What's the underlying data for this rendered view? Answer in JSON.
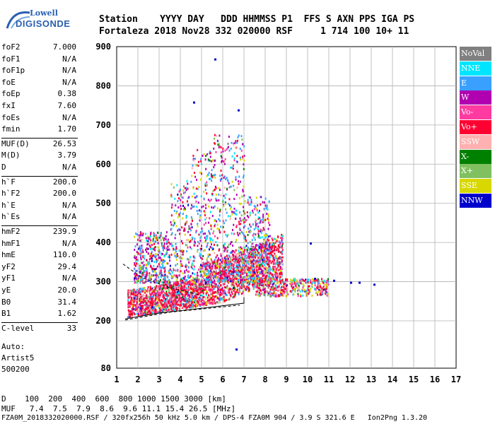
{
  "logo": {
    "top": "Lowell",
    "bottom": "DIGISONDE"
  },
  "header": {
    "row1": "Station    YYYY DAY   DDD HHMMSS P1  FFS S AXN PPS IGA PS",
    "row2": "Fortaleza 2018 Nov28 332 020000 RSF     1 714 100 10+ 11"
  },
  "params": [
    {
      "label": "foF2",
      "value": "7.000"
    },
    {
      "label": "foF1",
      "value": "N/A"
    },
    {
      "label": "foF1p",
      "value": "N/A"
    },
    {
      "label": "foE",
      "value": "N/A"
    },
    {
      "label": "foEp",
      "value": "0.38"
    },
    {
      "label": "fxI",
      "value": "7.60"
    },
    {
      "label": "foEs",
      "value": "N/A"
    },
    {
      "label": "fmin",
      "value": "1.70"
    },
    {
      "label": "MUF(D)",
      "value": "26.53"
    },
    {
      "label": "M(D)",
      "value": "3.79"
    },
    {
      "label": "D",
      "value": "N/A"
    },
    {
      "label": "h`F",
      "value": "200.0"
    },
    {
      "label": "h`F2",
      "value": "200.0"
    },
    {
      "label": "h`E",
      "value": "N/A"
    },
    {
      "label": "h`Es",
      "value": "N/A"
    },
    {
      "label": "hmF2",
      "value": "239.9"
    },
    {
      "label": "hmF1",
      "value": "N/A"
    },
    {
      "label": "hmE",
      "value": "110.0"
    },
    {
      "label": "yF2",
      "value": "29.4"
    },
    {
      "label": "yF1",
      "value": "N/A"
    },
    {
      "label": "yE",
      "value": "20.0"
    },
    {
      "label": "B0",
      "value": "31.4"
    },
    {
      "label": "B1",
      "value": "1.62"
    },
    {
      "label": "C-level",
      "value": "33"
    }
  ],
  "auto": {
    "line1": "Auto:",
    "line2": "Artist5",
    "line3": "500200"
  },
  "legend": [
    {
      "label": "NoVal",
      "color": "#808080"
    },
    {
      "label": "NNE",
      "color": "#00e5ff"
    },
    {
      "label": "E",
      "color": "#3aa0ff"
    },
    {
      "label": "W",
      "color": "#b000b0"
    },
    {
      "label": "Vo-",
      "color": "#ff3aa0"
    },
    {
      "label": "Vo+",
      "color": "#ff0033"
    },
    {
      "label": "SSW",
      "color": "#ffb0b0"
    },
    {
      "label": "X-",
      "color": "#008000"
    },
    {
      "label": "X+",
      "color": "#80c060"
    },
    {
      "label": "SSE",
      "color": "#d8d800"
    },
    {
      "label": "NNW",
      "color": "#0000cc"
    }
  ],
  "chart_data": {
    "type": "scatter",
    "title": "",
    "xlabel": "",
    "ylabel": "",
    "x_ticks": [
      "1",
      "2",
      "3",
      "4",
      "5",
      "6",
      "7",
      "8",
      "9",
      "10",
      "11",
      "12",
      "13",
      "14",
      "15",
      "16",
      "17"
    ],
    "y_ticks": [
      "80",
      "200",
      "300",
      "400",
      "500",
      "600",
      "700",
      "800",
      "900"
    ],
    "xlim": [
      1,
      17
    ],
    "ylim": [
      80,
      900
    ],
    "grid": true
  },
  "footer": {
    "line1": "D    100  200  400  600  800 1000 1500 3000 [km]",
    "line2": "MUF   7.4  7.5  7.9  8.6  9.6 11.1 15.4 26.5 [MHz]",
    "line3": "FZA0M_2018332020000.RSF / 320fx256h 50 kHz 5.0 km / DPS-4 FZA0M 904 / 3.9 S 321.6 E   Ion2Png 1.3.20"
  }
}
